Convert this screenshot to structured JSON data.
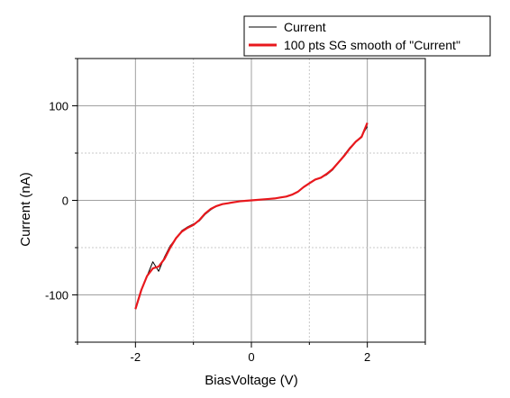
{
  "chart_data": {
    "type": "line",
    "title": "",
    "xlabel": "BiasVoltage (V)",
    "ylabel": "Current (nA)",
    "xlim": [
      -3,
      3
    ],
    "ylim": [
      -150,
      150
    ],
    "xticks": [
      -2,
      0,
      2
    ],
    "xtick_labels": [
      "-2",
      "0",
      "2"
    ],
    "yticks": [
      -100,
      0,
      100
    ],
    "ytick_labels": [
      "-100",
      "0",
      "100"
    ],
    "grid": true,
    "legend_position": "top-right",
    "series": [
      {
        "name": "Current",
        "color": "#000000",
        "x": [
          -2.0,
          -1.9,
          -1.8,
          -1.7,
          -1.6,
          -1.5,
          -1.4,
          -1.3,
          -1.2,
          -1.1,
          -1.0,
          -0.9,
          -0.8,
          -0.7,
          -0.6,
          -0.5,
          -0.4,
          -0.3,
          -0.2,
          -0.1,
          0.0,
          0.1,
          0.2,
          0.3,
          0.4,
          0.5,
          0.6,
          0.7,
          0.8,
          0.9,
          1.0,
          1.1,
          1.2,
          1.3,
          1.4,
          1.5,
          1.6,
          1.7,
          1.8,
          1.9,
          2.0
        ],
        "y": [
          -115,
          -95,
          -80,
          -65,
          -75,
          -60,
          -48,
          -40,
          -32,
          -28,
          -25,
          -22,
          -15,
          -10,
          -6,
          -4,
          -3,
          -2,
          -1,
          -0.5,
          0,
          0.5,
          1,
          1.5,
          2,
          3,
          4,
          6,
          9,
          14,
          18,
          22,
          24,
          27,
          32,
          40,
          48,
          56,
          62,
          68,
          78
        ]
      },
      {
        "name": "100 pts SG smooth of \"Current\"",
        "color": "#e8181d",
        "x": [
          -2.0,
          -1.9,
          -1.8,
          -1.7,
          -1.6,
          -1.5,
          -1.4,
          -1.3,
          -1.2,
          -1.1,
          -1.0,
          -0.9,
          -0.8,
          -0.7,
          -0.6,
          -0.5,
          -0.4,
          -0.3,
          -0.2,
          -0.1,
          0.0,
          0.1,
          0.2,
          0.3,
          0.4,
          0.5,
          0.6,
          0.7,
          0.8,
          0.9,
          1.0,
          1.1,
          1.2,
          1.3,
          1.4,
          1.5,
          1.6,
          1.7,
          1.8,
          1.9,
          2.0
        ],
        "y": [
          -115,
          -95,
          -80,
          -72,
          -70,
          -62,
          -50,
          -40,
          -33,
          -29,
          -26,
          -21,
          -14,
          -9,
          -6,
          -4,
          -3,
          -2,
          -1,
          -0.5,
          0,
          0.5,
          1,
          1.5,
          2,
          3,
          4,
          6,
          9,
          14,
          18,
          22,
          24,
          28,
          33,
          40,
          47,
          55,
          62,
          67,
          82
        ]
      }
    ]
  }
}
